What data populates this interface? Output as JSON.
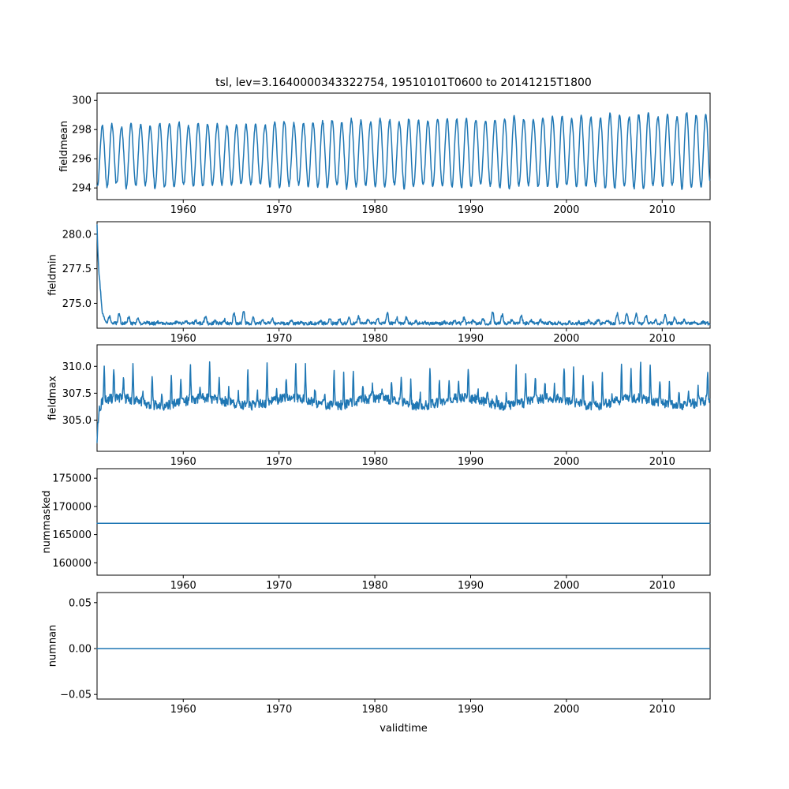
{
  "figure": {
    "title": "tsl, lev=3.1640000343322754, 19510101T0600 to 20141215T1800",
    "xlabel": "validtime",
    "line_color": "#1f77b4",
    "background": "#ffffff"
  },
  "chart_data": [
    {
      "type": "line",
      "ylabel": "fieldmean",
      "x_range": [
        1951,
        2015
      ],
      "ylim": [
        293.2,
        300.5
      ],
      "yticks": [
        294,
        296,
        298,
        300
      ],
      "ytick_labels": [
        "294",
        "296",
        "298",
        "300"
      ],
      "xticks": [
        1960,
        1970,
        1980,
        1990,
        2000,
        2010
      ],
      "xtick_labels": [
        "1960",
        "1970",
        "1980",
        "1990",
        "2000",
        "2010"
      ],
      "description": "Annual seasonal oscillation between about 293.7 and 300 with a slight upward trend from 1951 to 2014",
      "generator": {
        "kind": "seasonal",
        "base": 296.2,
        "base_trend": 0.35,
        "amp": 2.05,
        "amp_trend": 0.45,
        "amp_jitter": 0.3,
        "noise": 0.1,
        "phase": 0.3
      }
    },
    {
      "type": "line",
      "ylabel": "fieldmin",
      "x_range": [
        1951,
        2015
      ],
      "ylim": [
        273.2,
        280.9
      ],
      "yticks": [
        275.0,
        277.5,
        280.0
      ],
      "ytick_labels": [
        "275.0",
        "277.5",
        "280.0"
      ],
      "xticks": [
        1960,
        1970,
        1980,
        1990,
        2000,
        2010
      ],
      "xtick_labels": [
        "1960",
        "1970",
        "1980",
        "1990",
        "2000",
        "2010"
      ],
      "description": "Starts near 280.7 in 1951, drops rapidly to a ~273.6 baseline with small annual bumps up to ~275.5",
      "generator": {
        "kind": "decay_bumps",
        "base": 273.55,
        "decay_amp": 7.2,
        "decay_rate": 4.0,
        "bump_min": 0.25,
        "bump_var": 0.9,
        "noise": 0.12,
        "phase": 0.05
      }
    },
    {
      "type": "line",
      "ylabel": "fieldmax",
      "x_range": [
        1951,
        2015
      ],
      "ylim": [
        302.1,
        312.0
      ],
      "yticks": [
        305.0,
        307.5,
        310.0
      ],
      "ytick_labels": [
        "305.0",
        "307.5",
        "310.0"
      ],
      "xticks": [
        1960,
        1970,
        1980,
        1990,
        2000,
        2010
      ],
      "xtick_labels": [
        "1960",
        "1970",
        "1980",
        "1990",
        "2000",
        "2010"
      ],
      "description": "Noisy series around 306-307.5 with annual spikes reaching 310-311.5 and an initial dip to ~303 in 1951",
      "generator": {
        "kind": "noisy_spikes",
        "base": 306.7,
        "dip_amp": 3.5,
        "dip_rate": 5.5,
        "wander": 0.35,
        "noise": 0.45,
        "spike_min": 0.5,
        "spike_var": 3.0,
        "phase": 0.5
      }
    },
    {
      "type": "line",
      "ylabel": "nummasked",
      "x_range": [
        1951,
        2015
      ],
      "ylim": [
        157800,
        176700
      ],
      "yticks": [
        160000,
        165000,
        170000,
        175000
      ],
      "ytick_labels": [
        "160000",
        "165000",
        "170000",
        "175000"
      ],
      "xticks": [
        1960,
        1970,
        1980,
        1990,
        2000,
        2010
      ],
      "xtick_labels": [
        "1960",
        "1970",
        "1980",
        "1990",
        "2000",
        "2010"
      ],
      "description": "Constant at about 167000 for the whole period",
      "generator": {
        "kind": "constant",
        "value": 167000
      }
    },
    {
      "type": "line",
      "ylabel": "numnan",
      "x_range": [
        1951,
        2015
      ],
      "ylim": [
        -0.055,
        0.061
      ],
      "yticks": [
        -0.05,
        0.0,
        0.05
      ],
      "ytick_labels": [
        "−0.05",
        "0.00",
        "0.05"
      ],
      "xticks": [
        1960,
        1970,
        1980,
        1990,
        2000,
        2010
      ],
      "xtick_labels": [
        "1960",
        "1970",
        "1980",
        "1990",
        "2000",
        "2010"
      ],
      "description": "Constant at 0.00 for the whole period",
      "generator": {
        "kind": "constant",
        "value": 0
      }
    }
  ]
}
